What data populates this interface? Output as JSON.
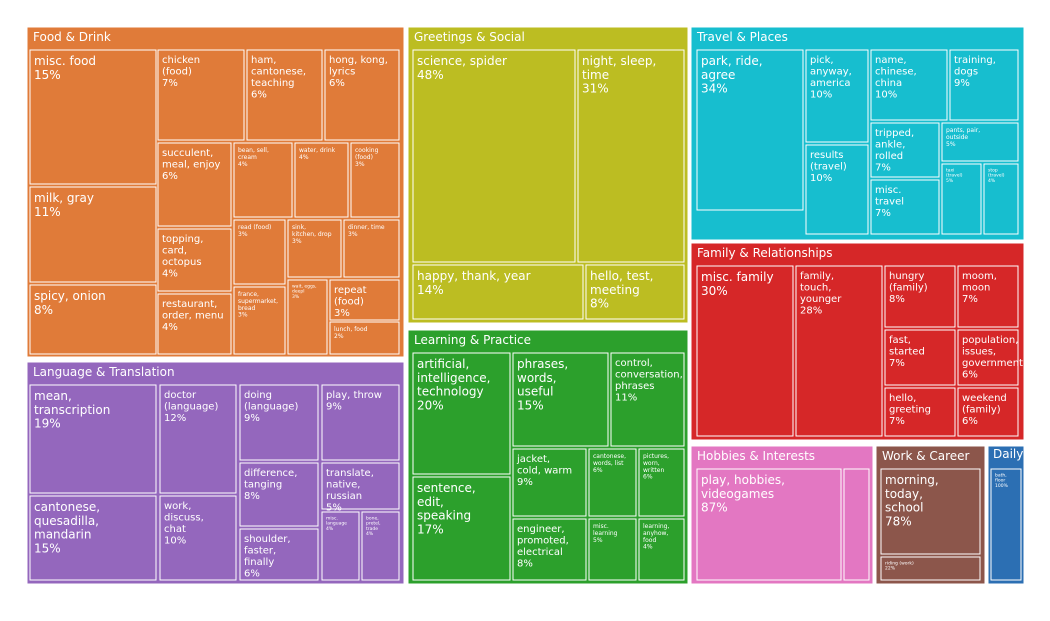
{
  "chart_data": {
    "type": "treemap",
    "groups": [
      {
        "name": "Food & Drink",
        "color": "#E07B39",
        "tiles": [
          {
            "name": "misc. food",
            "value": "15%"
          },
          {
            "name": "milk, gray",
            "value": "11%"
          },
          {
            "name": "spicy, onion",
            "value": "8%"
          },
          {
            "name": "chicken (food)",
            "value": "7%"
          },
          {
            "name": "ham, cantonese, teaching",
            "value": "6%"
          },
          {
            "name": "hong, kong, lyrics",
            "value": "6%"
          },
          {
            "name": "succulent, meal, enjoy",
            "value": "6%"
          },
          {
            "name": "bean, sell, cream",
            "value": "4%"
          },
          {
            "name": "water, drink",
            "value": "4%"
          },
          {
            "name": "cooking (food)",
            "value": "3%"
          },
          {
            "name": "topping, card, octopus",
            "value": "4%"
          },
          {
            "name": "read (food)",
            "value": "3%"
          },
          {
            "name": "sink, kitchen, drop",
            "value": "3%"
          },
          {
            "name": "dinner, time",
            "value": "3%"
          },
          {
            "name": "restaurant, order, menu",
            "value": "4%"
          },
          {
            "name": "france, supermarket, bread",
            "value": "3%"
          },
          {
            "name": "wait, eggs, deepl",
            "value": "3%"
          },
          {
            "name": "repeat (food)",
            "value": "3%"
          },
          {
            "name": "lunch, food",
            "value": "2%"
          }
        ]
      },
      {
        "name": "Greetings & Social",
        "color": "#BCBD22",
        "tiles": [
          {
            "name": "science, spider",
            "value": "48%"
          },
          {
            "name": "night, sleep, time",
            "value": "31%"
          },
          {
            "name": "happy, thank, year",
            "value": "14%"
          },
          {
            "name": "hello, test, meeting",
            "value": "8%"
          }
        ]
      },
      {
        "name": "Travel & Places",
        "color": "#17BECF",
        "tiles": [
          {
            "name": "park, ride, agree",
            "value": "34%"
          },
          {
            "name": "pick, anyway, america",
            "value": "10%"
          },
          {
            "name": "name, chinese, china",
            "value": "10%"
          },
          {
            "name": "training, dogs",
            "value": "9%"
          },
          {
            "name": "tripped, ankle, rolled",
            "value": "7%"
          },
          {
            "name": "pants, pair, outside",
            "value": "5%"
          },
          {
            "name": "results (travel)",
            "value": "10%"
          },
          {
            "name": "taxi (travel)",
            "value": "5%"
          },
          {
            "name": "stop (travel)",
            "value": "4%"
          },
          {
            "name": "misc. travel",
            "value": "7%"
          }
        ]
      },
      {
        "name": "Family & Relationships",
        "color": "#D62728",
        "tiles": [
          {
            "name": "misc. family",
            "value": "30%"
          },
          {
            "name": "family, touch, younger",
            "value": "28%"
          },
          {
            "name": "hungry (family)",
            "value": "8%"
          },
          {
            "name": "moom, moon",
            "value": "7%"
          },
          {
            "name": "fast, started",
            "value": "7%"
          },
          {
            "name": "population, issues, government",
            "value": "6%"
          },
          {
            "name": "hello, greeting",
            "value": "7%"
          },
          {
            "name": "weekend (family)",
            "value": "6%"
          }
        ]
      },
      {
        "name": "Language & Translation",
        "color": "#9467BD",
        "tiles": [
          {
            "name": "mean, transcription",
            "value": "19%"
          },
          {
            "name": "doctor (language)",
            "value": "12%"
          },
          {
            "name": "doing (language)",
            "value": "9%"
          },
          {
            "name": "play, throw",
            "value": "9%"
          },
          {
            "name": "difference, tanging",
            "value": "8%"
          },
          {
            "name": "translate, native, russian",
            "value": "5%"
          },
          {
            "name": "cantonese, quesadilla, mandarin",
            "value": "15%"
          },
          {
            "name": "work, discuss, chat",
            "value": "10%"
          },
          {
            "name": "shoulder, faster, finally",
            "value": "6%"
          },
          {
            "name": "misc. language",
            "value": "4%"
          },
          {
            "name": "bone, pretel, trade",
            "value": "4%"
          }
        ]
      },
      {
        "name": "Learning & Practice",
        "color": "#2CA02C",
        "tiles": [
          {
            "name": "artificial, intelligence, technology",
            "value": "20%"
          },
          {
            "name": "phrases, words, useful",
            "value": "15%"
          },
          {
            "name": "control, conversation, phrases",
            "value": "11%"
          },
          {
            "name": "sentence, edit, speaking",
            "value": "17%"
          },
          {
            "name": "jacket, cold, warm",
            "value": "9%"
          },
          {
            "name": "cantonese, words, list",
            "value": "6%"
          },
          {
            "name": "pictures, worn, written",
            "value": "6%"
          },
          {
            "name": "engineer, promoted, electrical",
            "value": "8%"
          },
          {
            "name": "misc. learning",
            "value": "5%"
          },
          {
            "name": "learning, anyhow, food",
            "value": "4%"
          }
        ]
      },
      {
        "name": "Hobbies & Interests",
        "color": "#E377C2",
        "tiles": [
          {
            "name": "play, hobbies, videogames",
            "value": "87%"
          },
          {
            "name": "",
            "value": ""
          }
        ]
      },
      {
        "name": "Work & Career",
        "color": "#8C564B",
        "tiles": [
          {
            "name": "morning, today, school",
            "value": "78%"
          },
          {
            "name": "riding (work)",
            "value": "22%"
          }
        ]
      },
      {
        "name": "Daily Life",
        "color": "#2C6FB3",
        "tiles": [
          {
            "name": "bath, floor",
            "value": "100%"
          }
        ]
      }
    ]
  }
}
